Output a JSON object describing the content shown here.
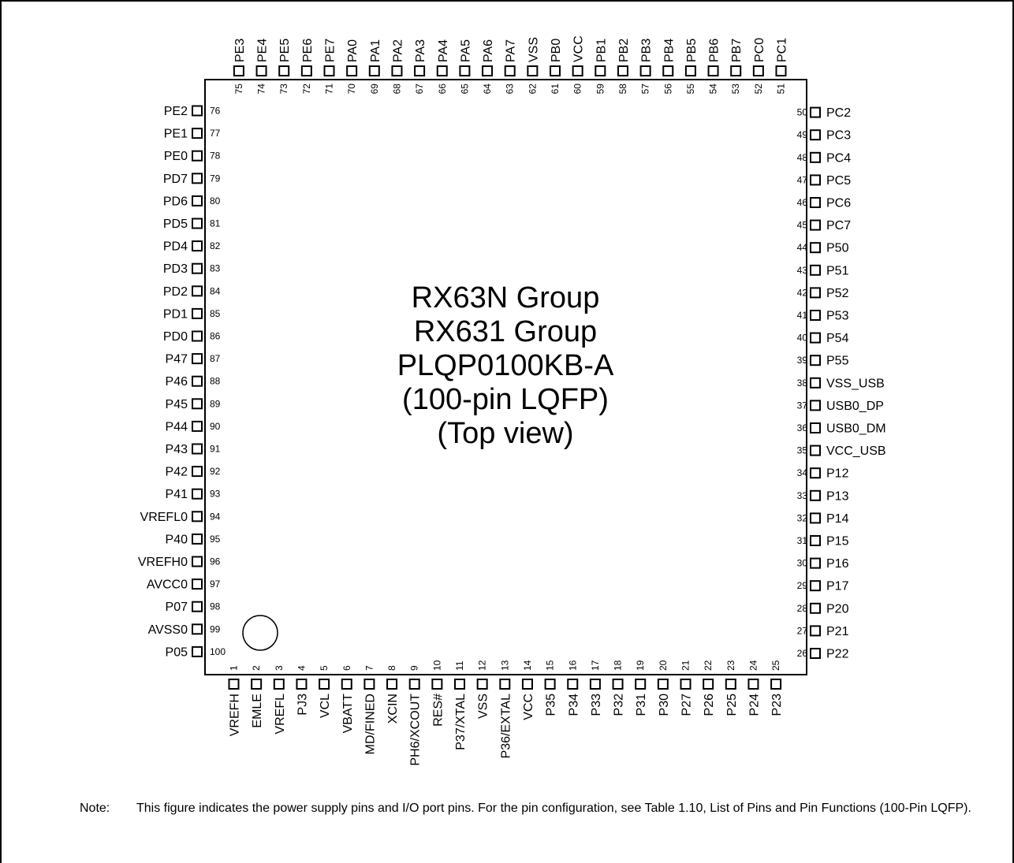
{
  "chip": {
    "title_lines": [
      "RX63N Group",
      "RX631 Group",
      "PLQP0100KB-A",
      "(100-pin LQFP)",
      "(Top view)"
    ]
  },
  "pins": {
    "bottom": [
      {
        "num": "1",
        "name": "VREFH"
      },
      {
        "num": "2",
        "name": "EMLE"
      },
      {
        "num": "3",
        "name": "VREFL"
      },
      {
        "num": "4",
        "name": "PJ3"
      },
      {
        "num": "5",
        "name": "VCL"
      },
      {
        "num": "6",
        "name": "VBATT"
      },
      {
        "num": "7",
        "name": "MD/FINED"
      },
      {
        "num": "8",
        "name": "XCIN"
      },
      {
        "num": "9",
        "name": "PH6/XCOUT"
      },
      {
        "num": "10",
        "name": "RES#"
      },
      {
        "num": "11",
        "name": "P37/XTAL"
      },
      {
        "num": "12",
        "name": "VSS"
      },
      {
        "num": "13",
        "name": "P36/EXTAL"
      },
      {
        "num": "14",
        "name": "VCC"
      },
      {
        "num": "15",
        "name": "P35"
      },
      {
        "num": "16",
        "name": "P34"
      },
      {
        "num": "17",
        "name": "P33"
      },
      {
        "num": "18",
        "name": "P32"
      },
      {
        "num": "19",
        "name": "P31"
      },
      {
        "num": "20",
        "name": "P30"
      },
      {
        "num": "21",
        "name": "P27"
      },
      {
        "num": "22",
        "name": "P26"
      },
      {
        "num": "23",
        "name": "P25"
      },
      {
        "num": "24",
        "name": "P24"
      },
      {
        "num": "25",
        "name": "P23"
      }
    ],
    "right": [
      {
        "num": "26",
        "name": "P22"
      },
      {
        "num": "27",
        "name": "P21"
      },
      {
        "num": "28",
        "name": "P20"
      },
      {
        "num": "29",
        "name": "P17"
      },
      {
        "num": "30",
        "name": "P16"
      },
      {
        "num": "31",
        "name": "P15"
      },
      {
        "num": "32",
        "name": "P14"
      },
      {
        "num": "33",
        "name": "P13"
      },
      {
        "num": "34",
        "name": "P12"
      },
      {
        "num": "35",
        "name": "VCC_USB"
      },
      {
        "num": "36",
        "name": "USB0_DM"
      },
      {
        "num": "37",
        "name": "USB0_DP"
      },
      {
        "num": "38",
        "name": "VSS_USB"
      },
      {
        "num": "39",
        "name": "P55"
      },
      {
        "num": "40",
        "name": "P54"
      },
      {
        "num": "41",
        "name": "P53"
      },
      {
        "num": "42",
        "name": "P52"
      },
      {
        "num": "43",
        "name": "P51"
      },
      {
        "num": "44",
        "name": "P50"
      },
      {
        "num": "45",
        "name": "PC7"
      },
      {
        "num": "46",
        "name": "PC6"
      },
      {
        "num": "47",
        "name": "PC5"
      },
      {
        "num": "48",
        "name": "PC4"
      },
      {
        "num": "49",
        "name": "PC3"
      },
      {
        "num": "50",
        "name": "PC2"
      }
    ],
    "top": [
      {
        "num": "51",
        "name": "PC1"
      },
      {
        "num": "52",
        "name": "PC0"
      },
      {
        "num": "53",
        "name": "PB7"
      },
      {
        "num": "54",
        "name": "PB6"
      },
      {
        "num": "55",
        "name": "PB5"
      },
      {
        "num": "56",
        "name": "PB4"
      },
      {
        "num": "57",
        "name": "PB3"
      },
      {
        "num": "58",
        "name": "PB2"
      },
      {
        "num": "59",
        "name": "PB1"
      },
      {
        "num": "60",
        "name": "VCC"
      },
      {
        "num": "61",
        "name": "PB0"
      },
      {
        "num": "62",
        "name": "VSS"
      },
      {
        "num": "63",
        "name": "PA7"
      },
      {
        "num": "64",
        "name": "PA6"
      },
      {
        "num": "65",
        "name": "PA5"
      },
      {
        "num": "66",
        "name": "PA4"
      },
      {
        "num": "67",
        "name": "PA3"
      },
      {
        "num": "68",
        "name": "PA2"
      },
      {
        "num": "69",
        "name": "PA1"
      },
      {
        "num": "70",
        "name": "PA0"
      },
      {
        "num": "71",
        "name": "PE7"
      },
      {
        "num": "72",
        "name": "PE6"
      },
      {
        "num": "73",
        "name": "PE5"
      },
      {
        "num": "74",
        "name": "PE4"
      },
      {
        "num": "75",
        "name": "PE3"
      }
    ],
    "left": [
      {
        "num": "76",
        "name": "PE2"
      },
      {
        "num": "77",
        "name": "PE1"
      },
      {
        "num": "78",
        "name": "PE0"
      },
      {
        "num": "79",
        "name": "PD7"
      },
      {
        "num": "80",
        "name": "PD6"
      },
      {
        "num": "81",
        "name": "PD5"
      },
      {
        "num": "82",
        "name": "PD4"
      },
      {
        "num": "83",
        "name": "PD3"
      },
      {
        "num": "84",
        "name": "PD2"
      },
      {
        "num": "85",
        "name": "PD1"
      },
      {
        "num": "86",
        "name": "PD0"
      },
      {
        "num": "87",
        "name": "P47"
      },
      {
        "num": "88",
        "name": "P46"
      },
      {
        "num": "89",
        "name": "P45"
      },
      {
        "num": "90",
        "name": "P44"
      },
      {
        "num": "91",
        "name": "P43"
      },
      {
        "num": "92",
        "name": "P42"
      },
      {
        "num": "93",
        "name": "P41"
      },
      {
        "num": "94",
        "name": "VREFL0"
      },
      {
        "num": "95",
        "name": "P40"
      },
      {
        "num": "96",
        "name": "VREFH0"
      },
      {
        "num": "97",
        "name": "AVCC0"
      },
      {
        "num": "98",
        "name": "P07"
      },
      {
        "num": "99",
        "name": "AVSS0"
      },
      {
        "num": "100",
        "name": "P05"
      }
    ]
  },
  "note": {
    "label": "Note:",
    "text": "This figure indicates the power supply pins and I/O port pins. For the pin configuration, see Table 1.10, List of Pins and Pin Functions (100-Pin LQFP)."
  }
}
